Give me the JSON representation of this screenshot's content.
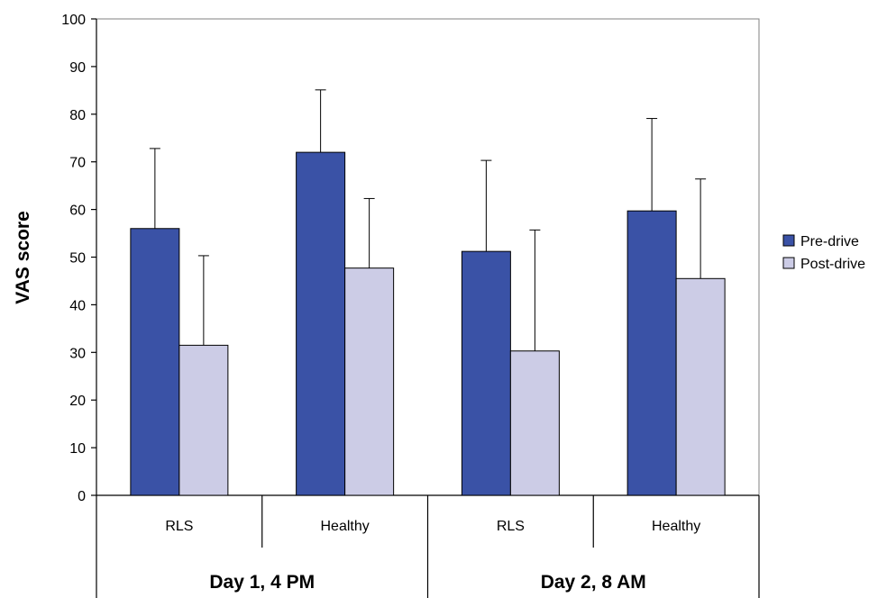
{
  "chart_data": {
    "type": "bar",
    "title": "",
    "xlabel": "",
    "ylabel": "VAS score",
    "ylim": [
      0,
      100
    ],
    "yticks": [
      0,
      10,
      20,
      30,
      40,
      50,
      60,
      70,
      80,
      90,
      100
    ],
    "categories": [
      "RLS",
      "Healthy",
      "RLS",
      "Healthy"
    ],
    "groups": [
      {
        "label": "Day 1, 4 PM",
        "categories": [
          "RLS",
          "Healthy"
        ]
      },
      {
        "label": "Day 2, 8 AM",
        "categories": [
          "RLS",
          "Healthy"
        ]
      }
    ],
    "series": [
      {
        "name": "Pre-drive",
        "color": "#3a52a6",
        "values": [
          56,
          72,
          51.2,
          59.7
        ],
        "error_upper": [
          72.8,
          85.1,
          70.3,
          79.1
        ]
      },
      {
        "name": "Post-drive",
        "color": "#cccce6",
        "values": [
          31.5,
          47.7,
          30.3,
          45.5
        ],
        "error_upper": [
          50.3,
          62.3,
          55.7,
          66.4
        ]
      }
    ],
    "grid": false,
    "legend_position": "right",
    "plot_border_color": "#808080"
  }
}
